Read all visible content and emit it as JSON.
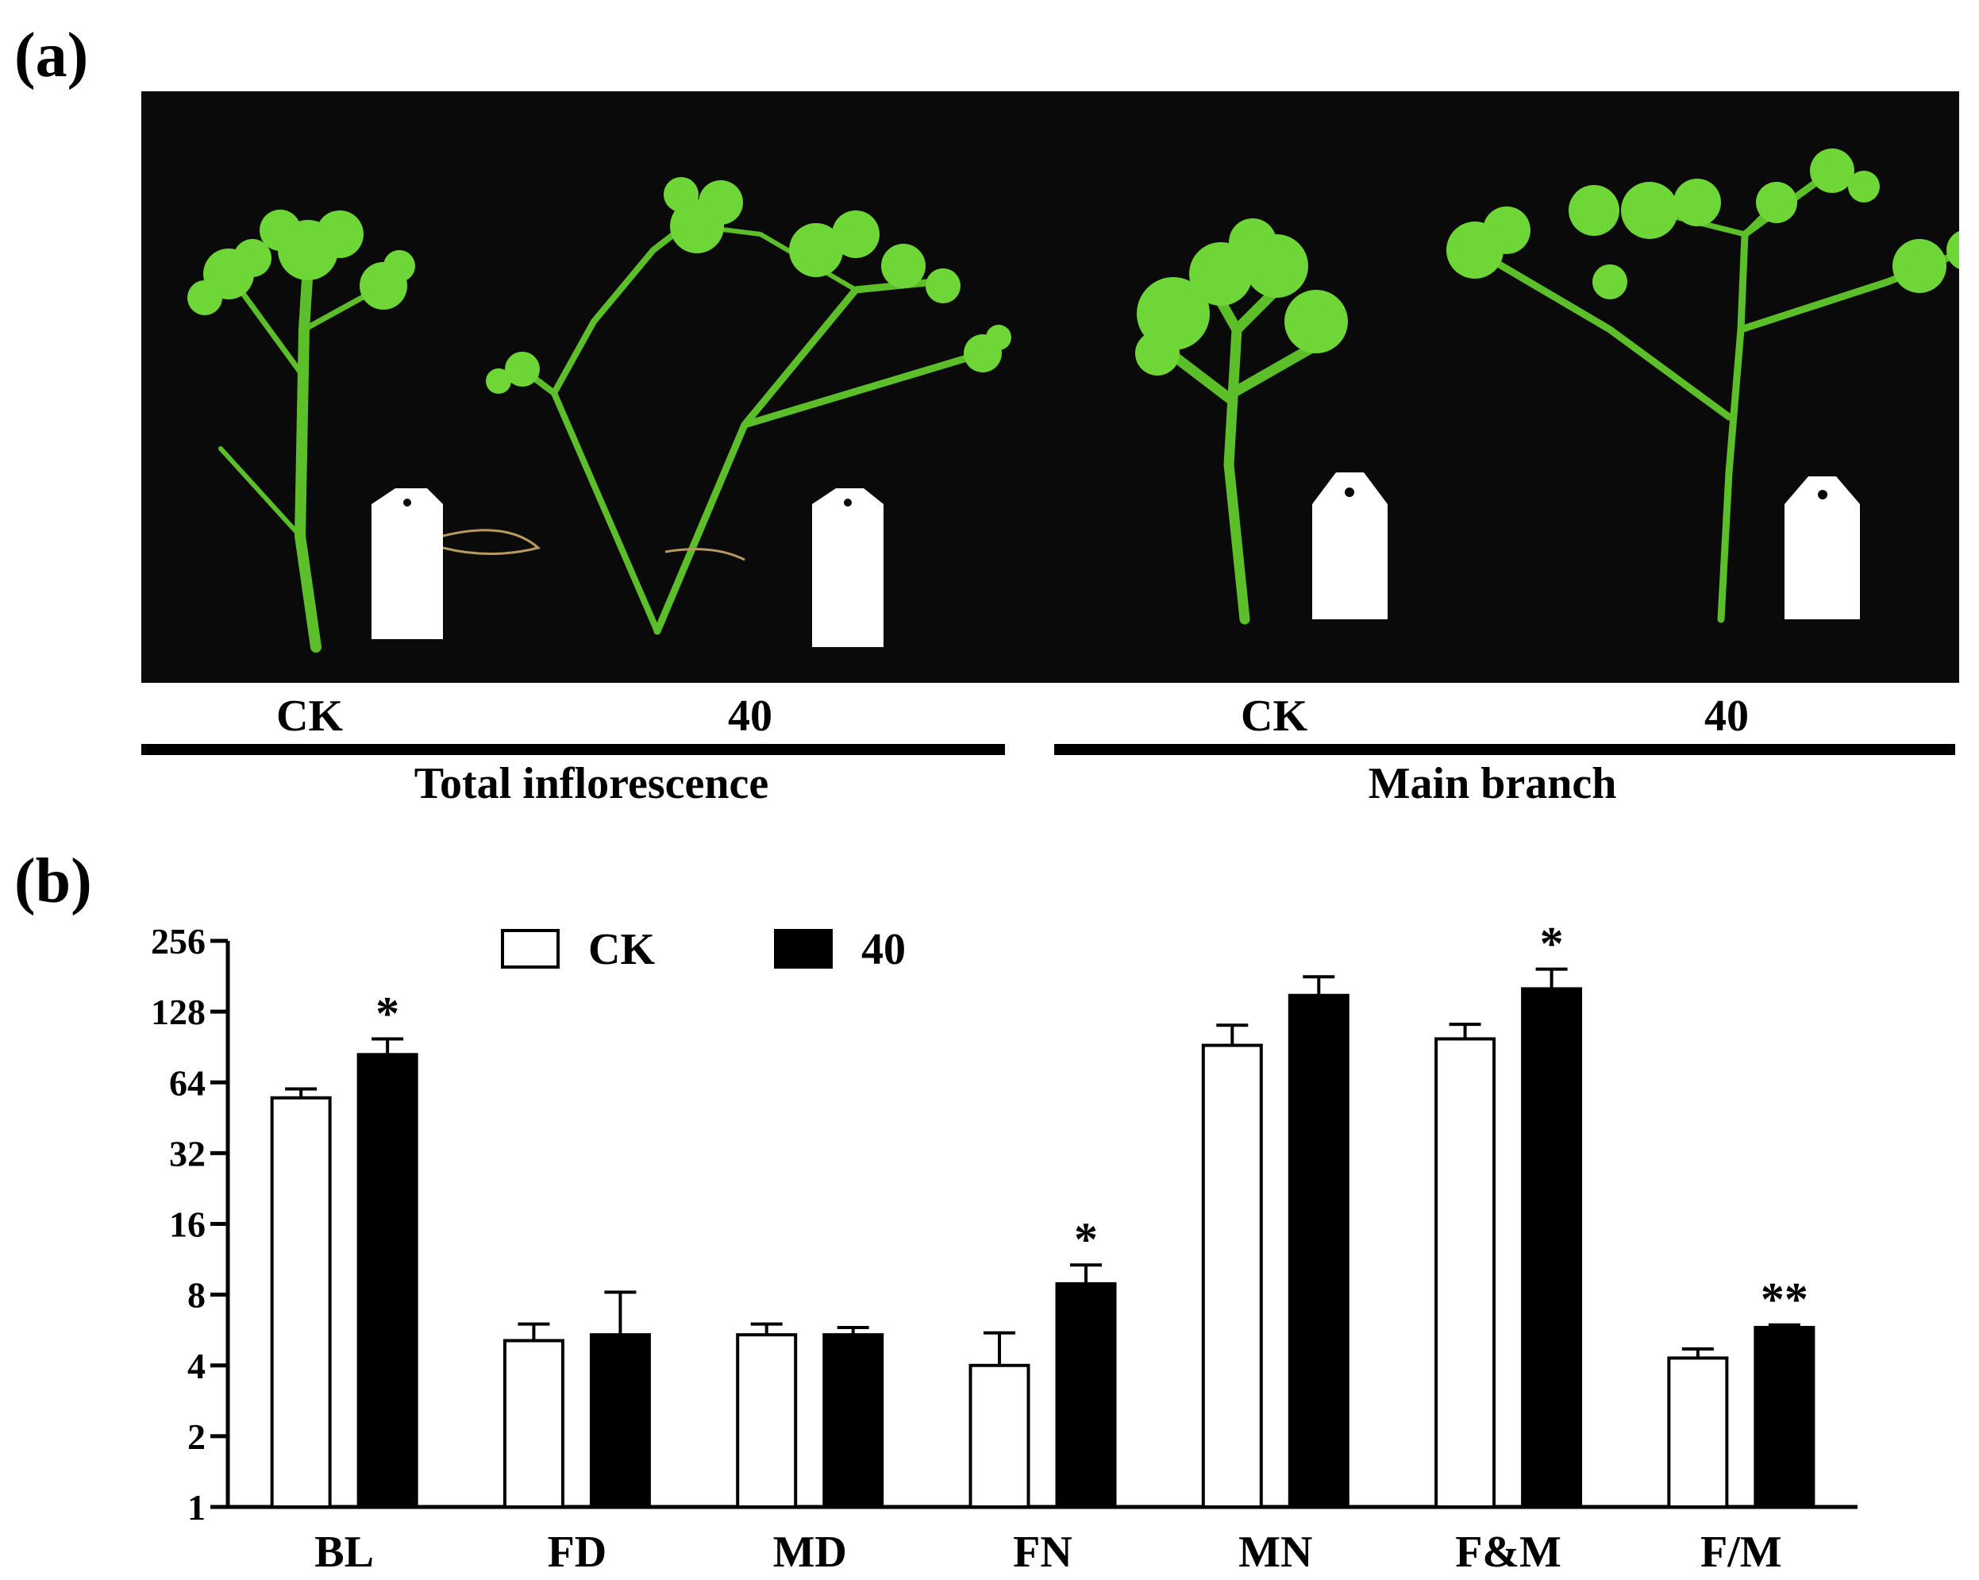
{
  "panels": {
    "a": {
      "label": "(a)",
      "treatments": [
        "CK",
        "40",
        "CK",
        "40"
      ],
      "groups": [
        "Total inflorescence",
        "Main branch"
      ]
    },
    "b": {
      "label": "(b)"
    }
  },
  "chart_data": {
    "type": "bar",
    "scale": "log2",
    "ylim": [
      1,
      256
    ],
    "yticks": [
      "1",
      "2",
      "4",
      "8",
      "16",
      "32",
      "64",
      "128",
      "256"
    ],
    "categories": [
      "BL",
      "FD",
      "MD",
      "FN",
      "MN",
      "F&M",
      "F/M"
    ],
    "series": [
      {
        "name": "CK",
        "color": "#ffffff",
        "values": [
          55,
          5.1,
          5.4,
          4.0,
          92,
          98,
          4.3
        ],
        "errors": [
          5,
          0.9,
          0.6,
          1.5,
          20,
          15,
          0.4
        ]
      },
      {
        "name": "40",
        "color": "#000000",
        "values": [
          84,
          5.4,
          5.4,
          8.9,
          150,
          160,
          5.8
        ],
        "errors": [
          14,
          2.8,
          0.4,
          1.8,
          30,
          34,
          0.15
        ]
      }
    ],
    "significance": [
      "*",
      "",
      "",
      "*",
      "",
      "*",
      "**"
    ],
    "legend": "top-center",
    "grid": false,
    "xlabel": "",
    "ylabel": ""
  }
}
